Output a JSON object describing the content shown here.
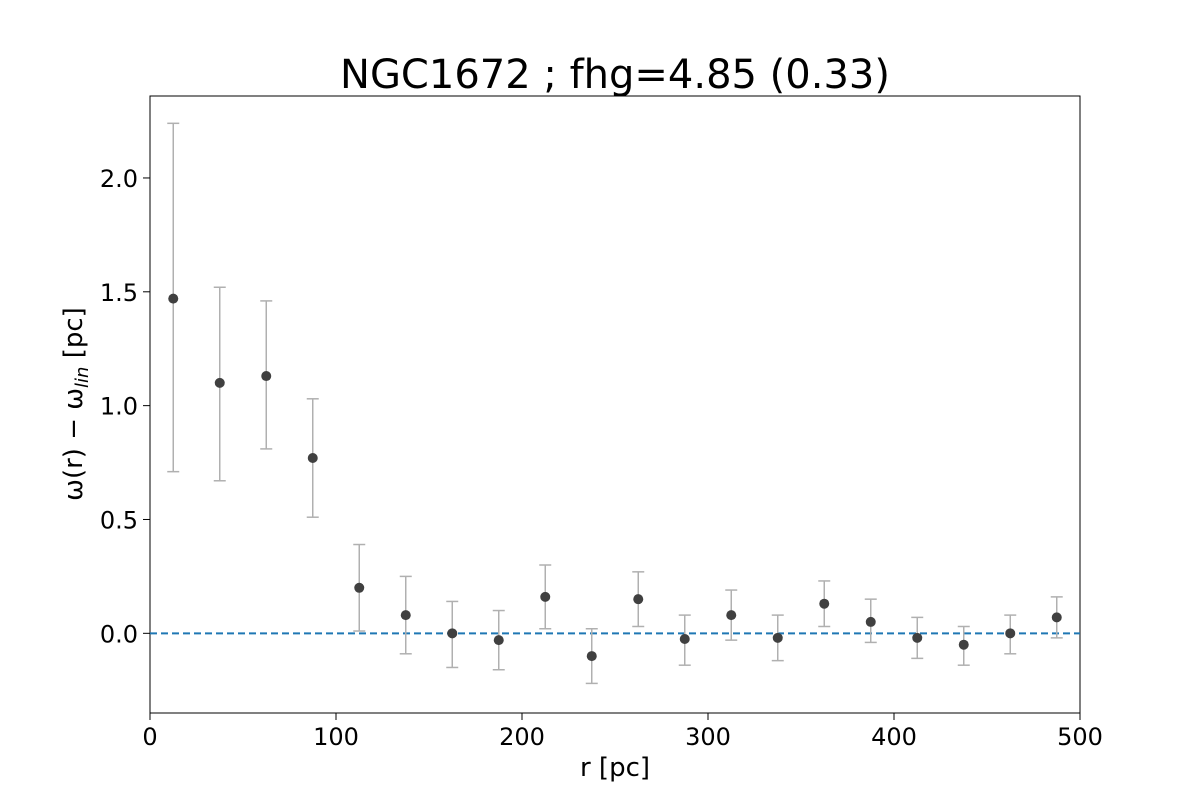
{
  "chart_data": {
    "type": "scatter",
    "title": "NGC1672 ; fhg=4.85 (0.33)",
    "xlabel": "r [pc]",
    "ylabel": {
      "prefix": "ω(r) − ω",
      "subscript": "lin",
      "suffix": " [pc]"
    },
    "xlim": [
      0,
      500
    ],
    "ylim": [
      -0.35,
      2.36
    ],
    "xticks": [
      0,
      100,
      200,
      300,
      400,
      500
    ],
    "xtick_labels": [
      "0",
      "100",
      "200",
      "300",
      "400",
      "500"
    ],
    "yticks": [
      0.0,
      0.5,
      1.0,
      1.5,
      2.0
    ],
    "ytick_labels": [
      "0.0",
      "0.5",
      "1.0",
      "1.5",
      "2.0"
    ],
    "grid": false,
    "reference_line": {
      "y": 0.0,
      "style": "dashed",
      "color": "#1f77b4"
    },
    "marker_color": "#404040",
    "errorbar_color": "#b0b0b0",
    "series": [
      {
        "x": [
          12.5,
          37.5,
          62.5,
          87.5,
          112.5,
          137.5,
          162.5,
          187.5,
          212.5,
          237.5,
          262.5,
          287.5,
          312.5,
          337.5,
          362.5,
          387.5,
          412.5,
          437.5,
          462.5,
          487.5
        ],
        "y": [
          1.47,
          1.1,
          1.13,
          0.77,
          0.2,
          0.08,
          0.0,
          -0.03,
          0.16,
          -0.1,
          0.15,
          -0.025,
          0.08,
          -0.02,
          0.13,
          0.05,
          -0.02,
          -0.05,
          0.0,
          0.07
        ],
        "y_low": [
          0.71,
          0.67,
          0.81,
          0.51,
          0.01,
          -0.09,
          -0.15,
          -0.16,
          0.02,
          -0.22,
          0.03,
          -0.14,
          -0.03,
          -0.12,
          0.03,
          -0.04,
          -0.11,
          -0.14,
          -0.09,
          -0.02
        ],
        "y_high": [
          2.24,
          1.52,
          1.46,
          1.03,
          0.39,
          0.25,
          0.14,
          0.1,
          0.3,
          0.02,
          0.27,
          0.08,
          0.19,
          0.08,
          0.23,
          0.15,
          0.07,
          0.03,
          0.08,
          0.16
        ]
      }
    ]
  }
}
